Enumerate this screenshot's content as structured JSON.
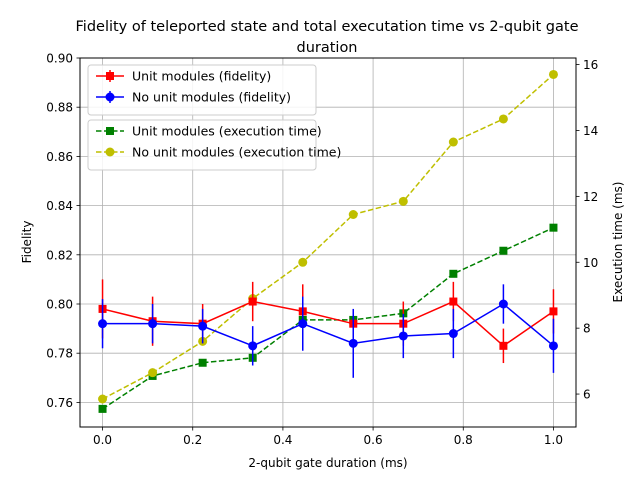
{
  "chart_data": {
    "type": "line",
    "title": "Fidelity of teleported state and total executation time vs 2-qubit gate duration",
    "title_lines": [
      "Fidelity of teleported state and total executation time vs 2-qubit gate",
      "duration"
    ],
    "xlabel": "2-qubit gate duration (ms)",
    "ylabel_left": "Fidelity",
    "ylabel_right": "Execution time (ms)",
    "xlim": [
      -0.05,
      1.05
    ],
    "ylim_left": [
      0.75,
      0.9
    ],
    "ylim_right": [
      5.0,
      16.2
    ],
    "grid": true,
    "x": [
      0.0,
      0.111,
      0.222,
      0.333,
      0.444,
      0.556,
      0.667,
      0.778,
      0.889,
      1.0
    ],
    "x_ticks": [
      {
        "value": 0.0,
        "label": "0.0"
      },
      {
        "value": 0.2,
        "label": "0.2"
      },
      {
        "value": 0.4,
        "label": "0.4"
      },
      {
        "value": 0.6,
        "label": "0.6"
      },
      {
        "value": 0.8,
        "label": "0.8"
      },
      {
        "value": 1.0,
        "label": "1.0"
      }
    ],
    "y_left_ticks": [
      {
        "value": 0.76,
        "label": "0.76"
      },
      {
        "value": 0.78,
        "label": "0.78"
      },
      {
        "value": 0.8,
        "label": "0.80"
      },
      {
        "value": 0.82,
        "label": "0.82"
      },
      {
        "value": 0.84,
        "label": "0.84"
      },
      {
        "value": 0.86,
        "label": "0.86"
      },
      {
        "value": 0.88,
        "label": "0.88"
      },
      {
        "value": 0.9,
        "label": "0.90"
      }
    ],
    "y_right_ticks": [
      {
        "value": 6,
        "label": "6"
      },
      {
        "value": 8,
        "label": "8"
      },
      {
        "value": 10,
        "label": "10"
      },
      {
        "value": 12,
        "label": "12"
      },
      {
        "value": 14,
        "label": "14"
      },
      {
        "value": 16,
        "label": "16"
      }
    ],
    "series": [
      {
        "name": "Unit modules (fidelity)",
        "axis": "left",
        "color": "#ff0000",
        "marker": "square",
        "linestyle": "solid",
        "values": [
          0.798,
          0.793,
          0.792,
          0.801,
          0.797,
          0.792,
          0.792,
          0.801,
          0.783,
          0.797
        ],
        "errors": [
          0.012,
          0.01,
          0.008,
          0.008,
          0.011,
          0.004,
          0.009,
          0.008,
          0.007,
          0.009
        ]
      },
      {
        "name": "No unit modules (fidelity)",
        "axis": "left",
        "color": "#0000ff",
        "marker": "circle",
        "linestyle": "solid",
        "values": [
          0.792,
          0.792,
          0.791,
          0.783,
          0.792,
          0.784,
          0.787,
          0.788,
          0.8,
          0.783
        ],
        "errors": [
          0.01,
          0.008,
          0.007,
          0.008,
          0.011,
          0.014,
          0.009,
          0.01,
          0.008,
          0.011
        ]
      },
      {
        "name": "Unit modules (execution time)",
        "axis": "right",
        "color": "#008000",
        "marker": "square",
        "linestyle": "dashed",
        "values": [
          5.55,
          6.55,
          6.95,
          7.1,
          8.25,
          8.25,
          8.45,
          9.65,
          10.35,
          11.05
        ]
      },
      {
        "name": "No unit modules (execution time)",
        "axis": "right",
        "color": "#bfbf00",
        "marker": "circle",
        "linestyle": "dashed",
        "values": [
          5.85,
          6.65,
          7.6,
          8.9,
          10.0,
          11.45,
          11.85,
          13.65,
          14.35,
          15.7
        ]
      }
    ],
    "legends": [
      {
        "placement": "upper-left",
        "entries": [
          0,
          1
        ]
      },
      {
        "placement": "upper-left-below",
        "entries": [
          2,
          3
        ]
      }
    ]
  }
}
